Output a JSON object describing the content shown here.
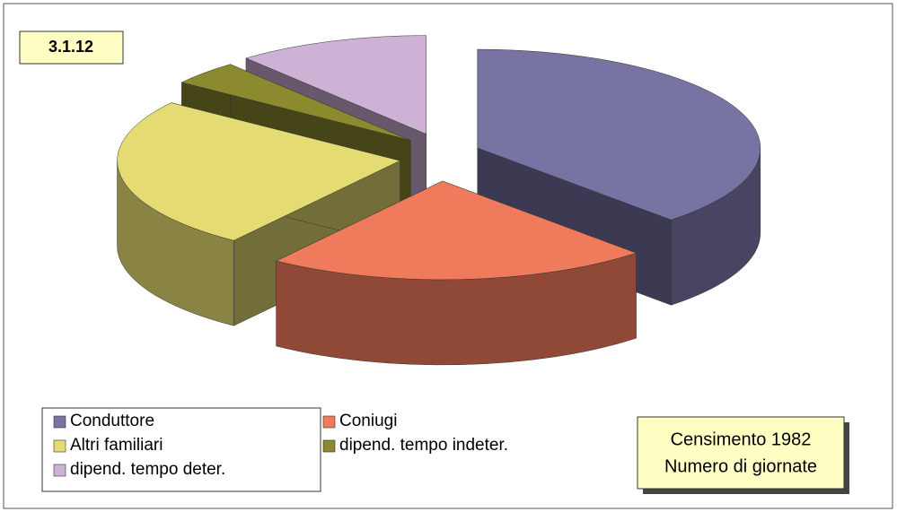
{
  "chart_data": {
    "type": "pie",
    "title": "3.1.12",
    "annotation": [
      "Censimento 1982",
      "Numero di giornate"
    ],
    "series": [
      {
        "name": "Conduttore",
        "color": "#7773a3",
        "values": 38
      },
      {
        "name": "Coniugi",
        "color": "#f07a5c",
        "values": 22
      },
      {
        "name": "Altri familiari",
        "color": "#e4dc72",
        "values": 25
      },
      {
        "name": "dipend. tempo indeter.",
        "color": "#8c8a2e",
        "values": 4
      },
      {
        "name": "dipend. tempo deter.",
        "color": "#cdb2d6",
        "values": 11
      }
    ]
  }
}
